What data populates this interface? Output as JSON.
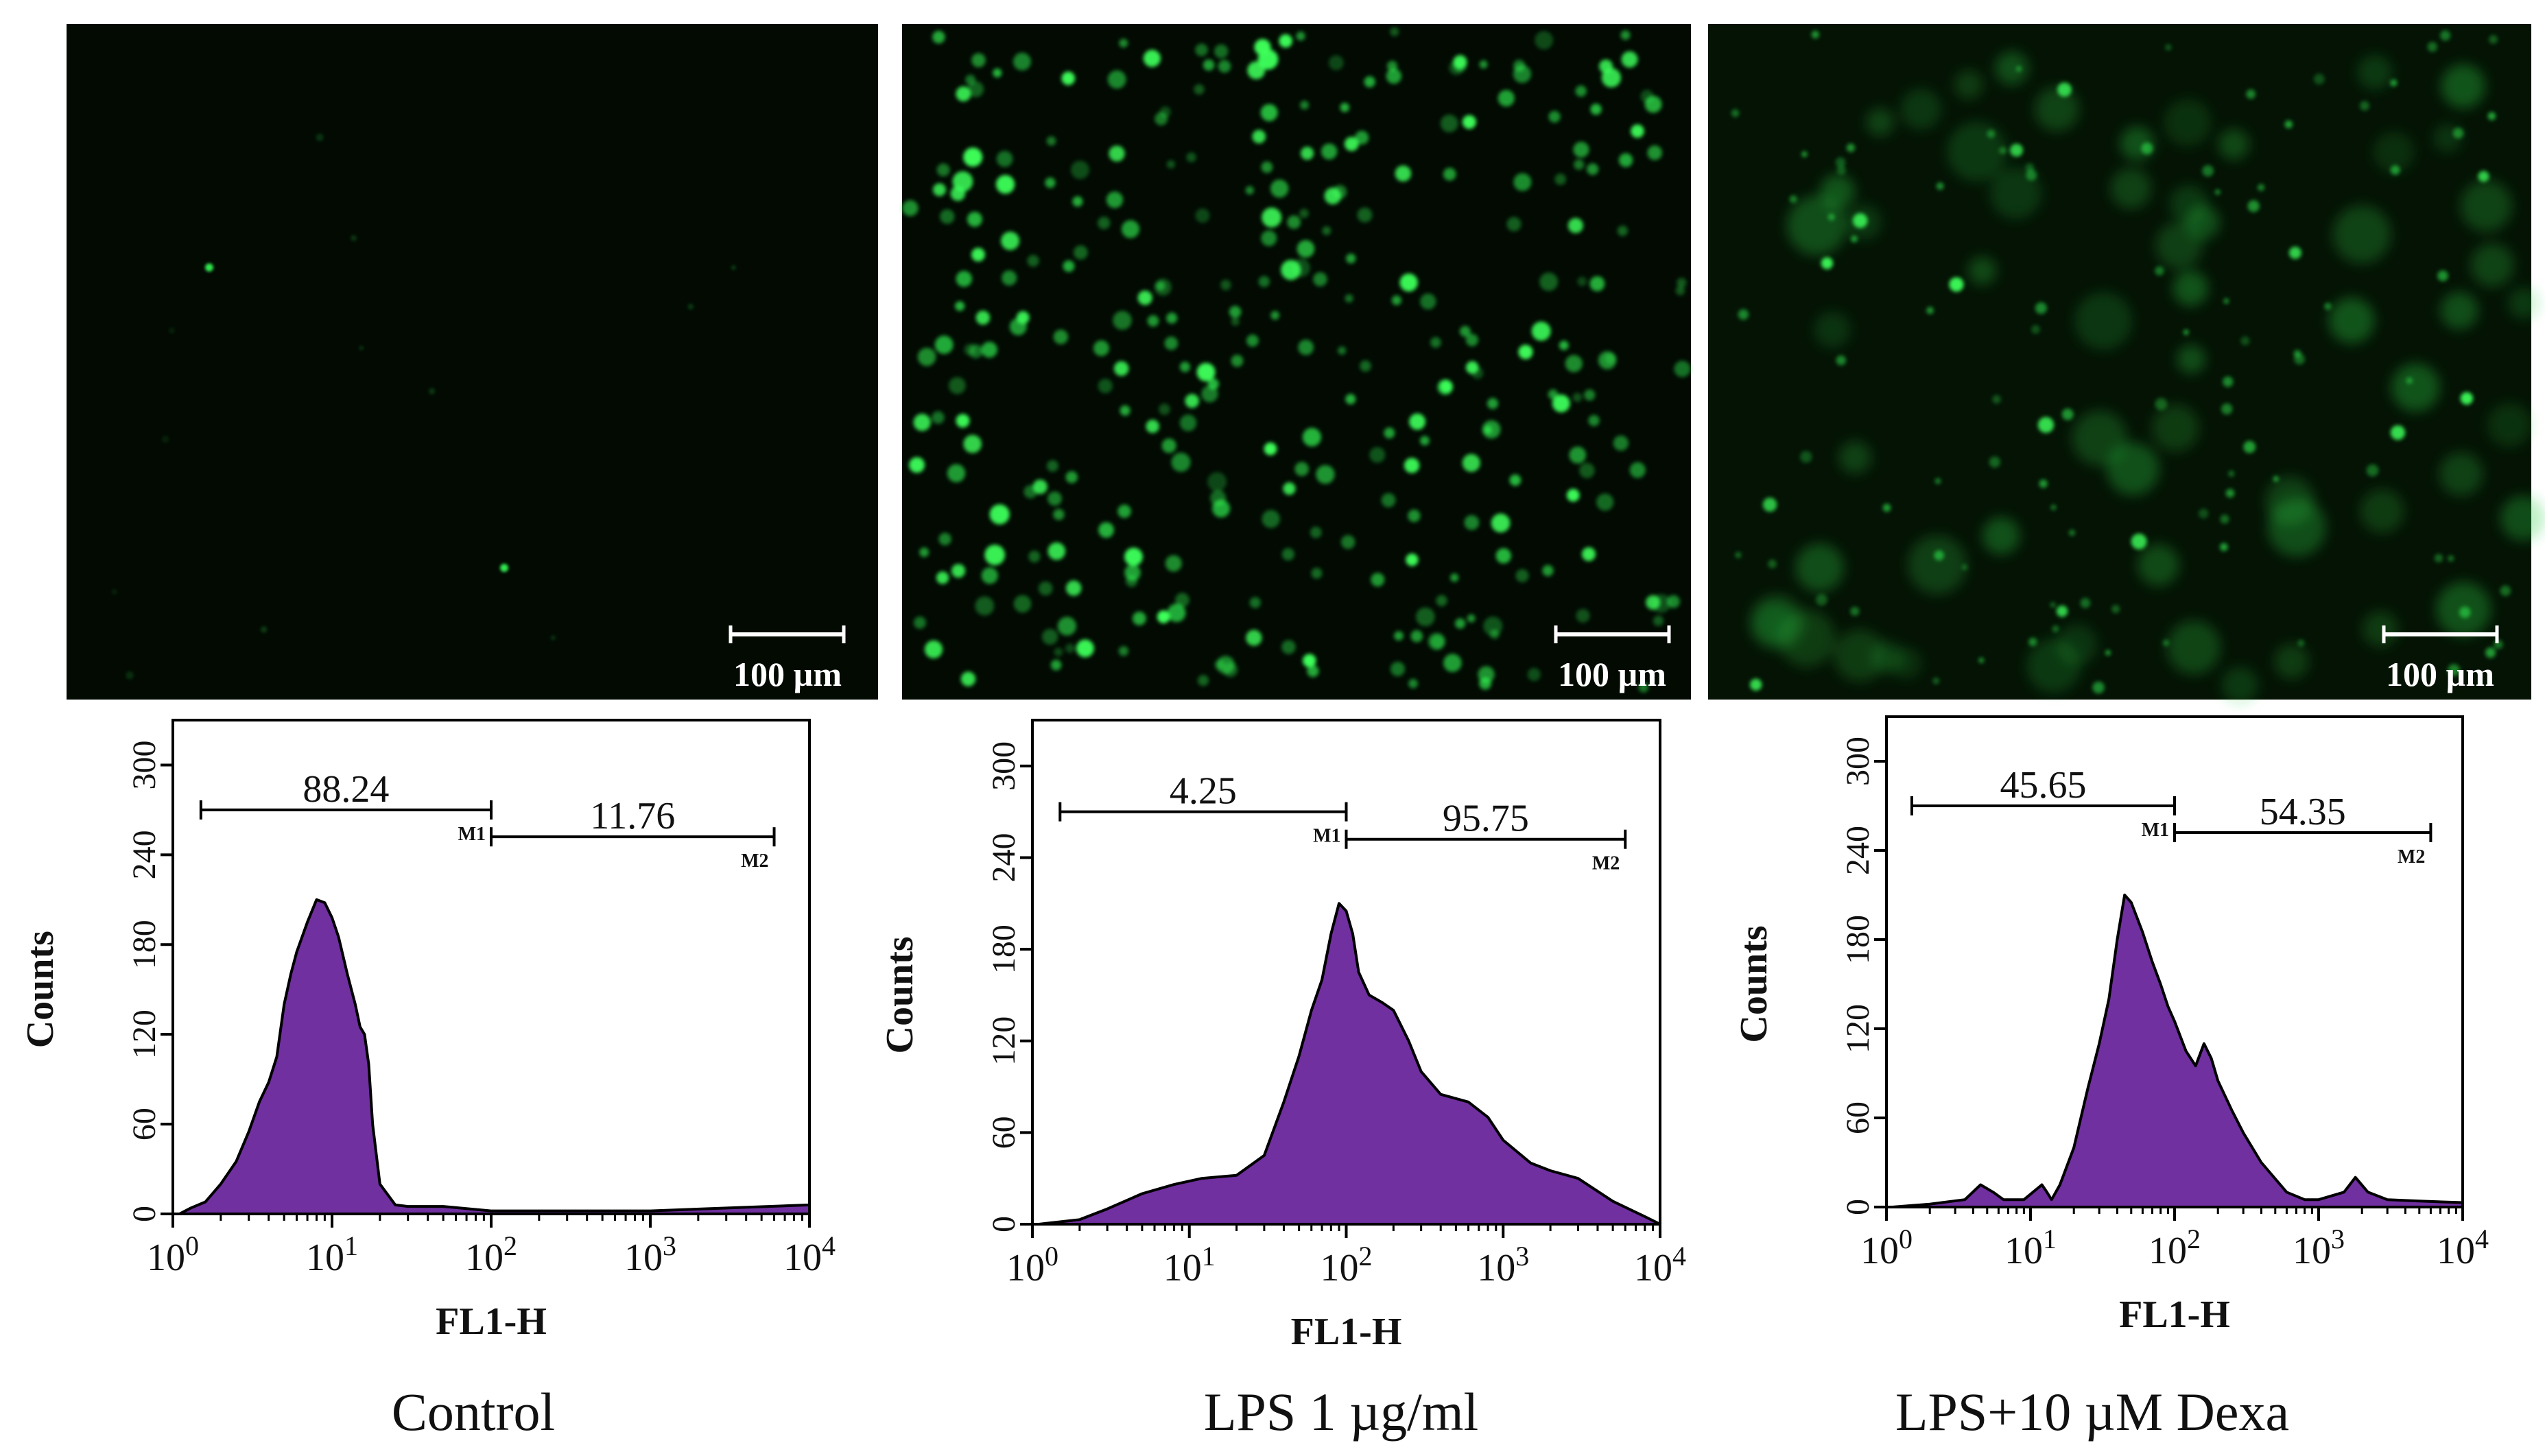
{
  "scale_bar_label": "100 µm",
  "colors": {
    "fluorescence": "#33ff55",
    "histogram_fill": "#7030a0",
    "histogram_edge": "#000000",
    "micrograph_background": "#020a02"
  },
  "chart_data": [
    {
      "type": "area",
      "panel_label": "Control",
      "xlabel": "FL1-H",
      "ylabel": "Counts",
      "x_scale": "log",
      "xlim": [
        1,
        10000
      ],
      "ylim": [
        0,
        330
      ],
      "x_ticks": [
        {
          "value": 1,
          "base": "10",
          "exp": "0"
        },
        {
          "value": 10,
          "base": "10",
          "exp": "1"
        },
        {
          "value": 100,
          "base": "10",
          "exp": "2"
        },
        {
          "value": 1000,
          "base": "10",
          "exp": "3"
        },
        {
          "value": 10000,
          "base": "10",
          "exp": "4"
        }
      ],
      "y_ticks": [
        0,
        60,
        120,
        180,
        240,
        300
      ],
      "markers": [
        {
          "name": "M1",
          "value": "88.24",
          "x_start": 1.5,
          "x_end": 100,
          "y": 270
        },
        {
          "name": "M2",
          "value": "11.76",
          "x_start": 100,
          "x_end": 6000,
          "y": 252
        }
      ],
      "series": [
        {
          "x": [
            1.1,
            1.3,
            1.6,
            2.0,
            2.5,
            3.0,
            3.5,
            4.0,
            4.5,
            5.0,
            5.5,
            6.0,
            7.0,
            8.0,
            9.0,
            10,
            11,
            12.5,
            14,
            15,
            16,
            17,
            18,
            20,
            25,
            30,
            50,
            100,
            200,
            1000,
            10000
          ],
          "y": [
            0,
            4,
            8,
            20,
            35,
            55,
            75,
            88,
            105,
            140,
            160,
            175,
            195,
            210,
            208,
            198,
            185,
            160,
            140,
            125,
            120,
            100,
            60,
            20,
            6,
            5,
            5,
            2,
            2,
            2,
            6
          ]
        }
      ]
    },
    {
      "type": "area",
      "panel_label": "LPS 1 µg/ml",
      "xlabel": "FL1-H",
      "ylabel": "Counts",
      "x_scale": "log",
      "xlim": [
        1,
        10000
      ],
      "ylim": [
        0,
        330
      ],
      "x_ticks": [
        {
          "value": 1,
          "base": "10",
          "exp": "0"
        },
        {
          "value": 10,
          "base": "10",
          "exp": "1"
        },
        {
          "value": 100,
          "base": "10",
          "exp": "2"
        },
        {
          "value": 1000,
          "base": "10",
          "exp": "3"
        },
        {
          "value": 10000,
          "base": "10",
          "exp": "4"
        }
      ],
      "y_ticks": [
        0,
        60,
        120,
        180,
        240,
        300
      ],
      "markers": [
        {
          "name": "M1",
          "value": "4.25",
          "x_start": 1.5,
          "x_end": 100,
          "y": 270
        },
        {
          "name": "M2",
          "value": "95.75",
          "x_start": 100,
          "x_end": 6000,
          "y": 252
        }
      ],
      "series": [
        {
          "x": [
            1.1,
            2,
            3,
            5,
            8,
            12,
            20,
            30,
            40,
            50,
            60,
            70,
            80,
            90,
            100,
            110,
            120,
            140,
            170,
            200,
            250,
            300,
            400,
            600,
            800,
            1000,
            1500,
            2000,
            3000,
            5000,
            8000,
            10000
          ],
          "y": [
            0,
            3,
            10,
            20,
            26,
            30,
            32,
            45,
            80,
            110,
            140,
            160,
            190,
            210,
            205,
            190,
            165,
            150,
            145,
            140,
            120,
            100,
            85,
            80,
            70,
            55,
            40,
            35,
            30,
            15,
            5,
            0
          ]
        }
      ]
    },
    {
      "type": "area",
      "panel_label": "LPS+10 µM Dexa",
      "xlabel": "FL1-H",
      "ylabel": "Counts",
      "x_scale": "log",
      "xlim": [
        1,
        10000
      ],
      "ylim": [
        0,
        330
      ],
      "x_ticks": [
        {
          "value": 1,
          "base": "10",
          "exp": "0"
        },
        {
          "value": 10,
          "base": "10",
          "exp": "1"
        },
        {
          "value": 100,
          "base": "10",
          "exp": "2"
        },
        {
          "value": 1000,
          "base": "10",
          "exp": "3"
        },
        {
          "value": 10000,
          "base": "10",
          "exp": "4"
        }
      ],
      "y_ticks": [
        0,
        60,
        120,
        180,
        240,
        300
      ],
      "markers": [
        {
          "name": "M1",
          "value": "45.65",
          "x_start": 1.5,
          "x_end": 100,
          "y": 270
        },
        {
          "name": "M2",
          "value": "54.35",
          "x_start": 100,
          "x_end": 6000,
          "y": 252
        }
      ],
      "series": [
        {
          "x": [
            1.1,
            2,
            3.5,
            4.5,
            5.5,
            6.5,
            9,
            12,
            13,
            14,
            16,
            20,
            25,
            30,
            35,
            40,
            45,
            50,
            60,
            70,
            80,
            90,
            100,
            120,
            140,
            160,
            180,
            200,
            250,
            300,
            400,
            600,
            800,
            1000,
            1500,
            1800,
            2200,
            3000,
            5000,
            10000
          ],
          "y": [
            0,
            2,
            5,
            15,
            10,
            5,
            5,
            15,
            10,
            5,
            15,
            40,
            80,
            110,
            140,
            180,
            210,
            205,
            185,
            165,
            150,
            135,
            125,
            105,
            95,
            110,
            100,
            85,
            65,
            50,
            30,
            10,
            5,
            5,
            10,
            20,
            10,
            5,
            4,
            3
          ]
        }
      ]
    }
  ]
}
